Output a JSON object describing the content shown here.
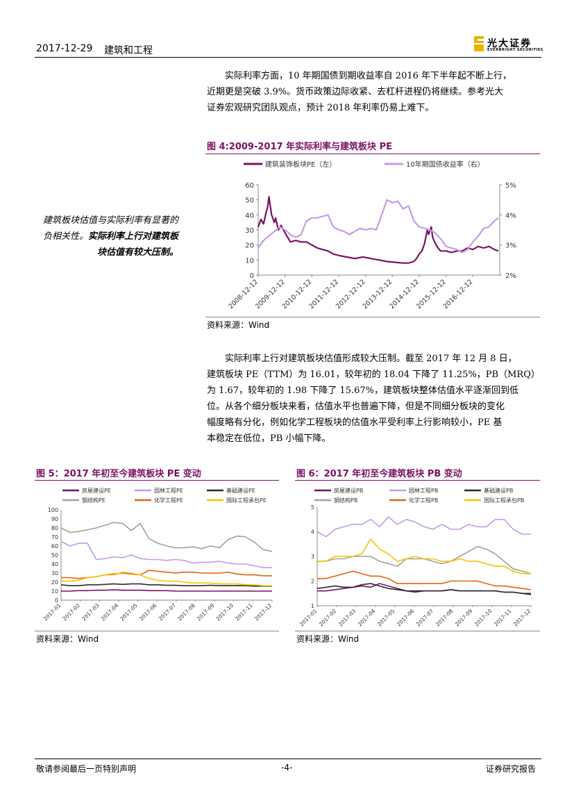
{
  "header": {
    "date": "2017-12-29",
    "sector": "建筑和工程",
    "logo_cn": "光大证券",
    "logo_en": "EVERBRIGHT SECURITIES"
  },
  "paragraph1": [
    "实际利率方面，10 年期国债到期收益率自 2016 年下半年起不断上行，",
    "近期更是突破 3.9%。货币政策边际收紧、去杠杆进程仍将继续。参考光大",
    "证券宏观研究团队观点，预计 2018 年利率仍易上难下。"
  ],
  "sidebar": {
    "text_plain": "建筑板块估值与实际利率有显著的负相关性。",
    "text_bold": "实际利率上行对建筑板块估值有较大压制。"
  },
  "figure4": {
    "title": "图 4:2009-2017 年实际利率与建筑板块 PE",
    "source": "资料来源：Wind"
  },
  "paragraph2": [
    "实际利率上行对建筑板块估值形成较大压制。截至 2017 年 12 月 8 日，",
    "建筑板块 PE（TTM）为 16.01，较年初的 18.04 下降了 11.25%，PB（MRQ）",
    "为 1.67，较年初的 1.98 下降了 15.67%，建筑板块整体估值水平逐渐回到低",
    "位。从各个细分板块来看，估值水平也普遍下降，但是不同细分板块的变化",
    "幅度略有分化，例如化学工程板块的估值水平受利率上行影响较小，PE 基",
    "本稳定在低位，PB 小幅下降。"
  ],
  "figure5": {
    "title": "图 5：2017 年初至今建筑板块 PE 变动",
    "source": "资料来源：Wind"
  },
  "figure6": {
    "title": "图 6：2017 年初至今建筑板块 PB 变动",
    "source": "资料来源：Wind"
  },
  "footer": {
    "left": "敬请参阅最后一页特别声明",
    "page": "-4-",
    "right": "证券研究报告"
  },
  "chart_data": [
    {
      "type": "line",
      "legend": [
        "建筑装饰板块PE（左）",
        "10年期国债收益率（右）"
      ],
      "x_ticks": [
        "2008-12-12",
        "2009-12-12",
        "2010-12-12",
        "2011-12-12",
        "2012-12-12",
        "2013-12-12",
        "2014-12-12",
        "2015-12-12",
        "2016-12-12"
      ],
      "y_left_ticks": [
        "0",
        "10",
        "20",
        "30",
        "40",
        "50",
        "60"
      ],
      "y_right_ticks": [
        "2%",
        "3%",
        "4%",
        "5%"
      ],
      "ylim_left": [
        0,
        60
      ],
      "ylim_right": [
        2,
        5
      ],
      "series": [
        {
          "name": "建筑装饰板块PE（左）",
          "color": "#7b1063",
          "x": [
            2009.0,
            2009.1,
            2009.2,
            2009.3,
            2009.35,
            2009.4,
            2009.5,
            2009.6,
            2009.65,
            2009.75,
            2009.85,
            2010.0,
            2010.2,
            2010.4,
            2010.6,
            2010.8,
            2011.0,
            2011.2,
            2011.4,
            2011.6,
            2011.8,
            2012.0,
            2012.3,
            2012.6,
            2012.9,
            2013.2,
            2013.5,
            2013.8,
            2014.1,
            2014.4,
            2014.6,
            2014.8,
            2014.9,
            2015.0,
            2015.1,
            2015.2,
            2015.3,
            2015.35,
            2015.45,
            2015.5,
            2015.6,
            2015.7,
            2015.8,
            2016.0,
            2016.2,
            2016.4,
            2016.6,
            2016.8,
            2017.0,
            2017.2,
            2017.4,
            2017.6,
            2017.8,
            2017.95
          ],
          "y": [
            32,
            37,
            34,
            42,
            45,
            52,
            40,
            35,
            38,
            30,
            33,
            28,
            22,
            23,
            22,
            22,
            20,
            18,
            17,
            16,
            14,
            13,
            12,
            11,
            12,
            11,
            10,
            9,
            8.5,
            8,
            8,
            9,
            11,
            14,
            16,
            21,
            30,
            27,
            32,
            25,
            21,
            18,
            16,
            16,
            15,
            16,
            16,
            18,
            17,
            19,
            18,
            19,
            17,
            16
          ]
        },
        {
          "name": "10年期国债收益率（右）",
          "color": "#c39be8",
          "x": [
            2009.0,
            2009.2,
            2009.4,
            2009.6,
            2009.8,
            2010.0,
            2010.2,
            2010.4,
            2010.6,
            2010.8,
            2011.0,
            2011.2,
            2011.4,
            2011.6,
            2011.8,
            2012.0,
            2012.2,
            2012.4,
            2012.6,
            2012.8,
            2013.0,
            2013.2,
            2013.4,
            2013.6,
            2013.8,
            2014.0,
            2014.2,
            2014.4,
            2014.6,
            2014.8,
            2015.0,
            2015.2,
            2015.4,
            2015.6,
            2015.8,
            2016.0,
            2016.2,
            2016.4,
            2016.6,
            2016.8,
            2017.0,
            2017.2,
            2017.4,
            2017.6,
            2017.8,
            2017.95
          ],
          "y": [
            2.9,
            3.15,
            3.3,
            3.45,
            3.6,
            3.5,
            3.35,
            3.25,
            3.35,
            3.8,
            3.9,
            3.9,
            3.95,
            4.0,
            3.6,
            3.5,
            3.45,
            3.35,
            3.45,
            3.55,
            3.5,
            3.55,
            3.5,
            4.0,
            4.5,
            4.4,
            4.45,
            4.2,
            4.3,
            3.8,
            3.6,
            3.55,
            3.5,
            3.4,
            3.2,
            2.95,
            2.9,
            2.85,
            2.75,
            2.85,
            3.1,
            3.3,
            3.55,
            3.6,
            3.8,
            3.9
          ]
        }
      ]
    },
    {
      "type": "line",
      "x_ticks": [
        "2017-01",
        "2017-02",
        "2017-03",
        "2017-04",
        "2017-05",
        "2017-06",
        "2017-07",
        "2017-08",
        "2017-09",
        "2017-10",
        "2017-11",
        "2017-12"
      ],
      "y_ticks": [
        "0",
        "10",
        "20",
        "30",
        "40",
        "50",
        "60",
        "70",
        "80",
        "90",
        "100"
      ],
      "ylim": [
        0,
        100
      ],
      "legend": [
        "房屋建设PE",
        "园林工程PE",
        "基础建设PE",
        "钢结构PE",
        "化学工程PE",
        "国际工程承包PE"
      ],
      "series": [
        {
          "name": "房屋建设PE",
          "color": "#7b1063",
          "values": [
            10,
            10,
            10.5,
            10.5,
            11,
            11,
            11.5,
            11,
            11,
            11,
            10.5,
            10.5,
            10.5,
            10,
            10,
            10,
            10,
            10,
            10,
            10,
            10,
            10,
            10,
            10,
            10
          ]
        },
        {
          "name": "园林工程PE",
          "color": "#c39be8",
          "values": [
            65,
            60,
            63,
            63,
            45,
            46,
            48,
            47,
            50,
            46,
            45,
            45,
            44,
            45,
            44,
            41,
            42,
            42,
            43,
            41,
            40,
            40,
            38,
            36,
            36
          ]
        },
        {
          "name": "基础建设PE",
          "color": "#2a2a2a",
          "values": [
            17,
            16,
            16,
            17,
            17,
            17.5,
            18,
            17.5,
            18,
            18,
            17,
            17,
            16.5,
            16.5,
            16,
            16,
            16,
            16.5,
            16,
            16,
            16,
            16,
            15.5,
            15.5,
            15.5
          ]
        },
        {
          "name": "钢结构PE",
          "color": "#a0a0a0",
          "values": [
            80,
            75,
            76,
            78,
            80,
            83,
            86,
            85,
            77,
            85,
            68,
            63,
            60,
            58,
            58,
            59,
            57,
            60,
            58,
            67,
            71,
            70,
            64,
            56,
            54
          ]
        },
        {
          "name": "化学工程PE",
          "color": "#e8600a",
          "values": [
            25,
            25,
            24,
            25,
            26,
            28,
            29,
            30,
            29,
            28,
            33,
            32,
            31,
            30,
            31,
            31,
            30,
            30,
            30,
            31,
            29,
            28,
            28,
            27,
            27
          ]
        },
        {
          "name": "国际工程承包PE",
          "color": "#f5c400",
          "values": [
            21,
            21,
            22,
            25,
            26,
            28,
            28,
            31,
            30,
            28,
            24,
            22,
            21,
            21,
            20,
            19,
            19,
            19,
            18,
            18,
            18,
            17,
            17,
            16,
            16
          ]
        }
      ]
    },
    {
      "type": "line",
      "x_ticks": [
        "2017-01",
        "2017-02",
        "2017-03",
        "2017-04",
        "2017-05",
        "2017-06",
        "2017-07",
        "2017-08",
        "2017-09",
        "2017-10",
        "2017-11",
        "2017-12"
      ],
      "y_ticks": [
        "1",
        "2",
        "3",
        "4",
        "5"
      ],
      "ylim": [
        1,
        5
      ],
      "legend": [
        "房屋建设PB",
        "园林工程PB",
        "基础建设PB",
        "钢结构PB",
        "化学工程PB",
        "国际工程承包PB"
      ],
      "series": [
        {
          "name": "房屋建设PB",
          "color": "#7b1063",
          "values": [
            1.6,
            1.6,
            1.65,
            1.7,
            1.75,
            1.8,
            1.75,
            1.9,
            1.8,
            1.7,
            1.6,
            1.55,
            1.6,
            1.6,
            1.6,
            1.65,
            1.6,
            1.6,
            1.6,
            1.6,
            1.6,
            1.55,
            1.55,
            1.5,
            1.5
          ]
        },
        {
          "name": "园林工程PB",
          "color": "#c39be8",
          "values": [
            4.0,
            3.8,
            4.1,
            4.2,
            4.3,
            4.3,
            4.5,
            4.2,
            4.6,
            4.3,
            4.5,
            4.4,
            4.2,
            4.1,
            4.3,
            4.1,
            4.1,
            4.3,
            4.2,
            4.2,
            4.5,
            4.5,
            4.1,
            3.9,
            3.9
          ]
        },
        {
          "name": "基础建设PB",
          "color": "#2a2a2a",
          "values": [
            1.7,
            1.75,
            1.8,
            1.75,
            1.75,
            1.85,
            1.9,
            1.8,
            1.7,
            1.65,
            1.6,
            1.6,
            1.6,
            1.6,
            1.6,
            1.65,
            1.6,
            1.6,
            1.6,
            1.6,
            1.6,
            1.55,
            1.55,
            1.5,
            1.45
          ]
        },
        {
          "name": "钢结构PB",
          "color": "#a0a0a0",
          "values": [
            2.8,
            2.8,
            2.9,
            2.9,
            3.0,
            3.0,
            3.0,
            2.8,
            2.7,
            2.6,
            2.9,
            2.9,
            2.9,
            2.8,
            2.7,
            2.8,
            3.0,
            3.2,
            3.4,
            3.3,
            3.1,
            2.8,
            2.5,
            2.4,
            2.3
          ]
        },
        {
          "name": "化学工程PB",
          "color": "#e8600a",
          "values": [
            2.1,
            2.1,
            2.2,
            2.3,
            2.4,
            2.3,
            2.2,
            2.2,
            2.1,
            1.9,
            1.9,
            1.9,
            1.9,
            1.9,
            1.9,
            2.0,
            2.0,
            2.0,
            2.0,
            1.9,
            1.8,
            1.8,
            1.75,
            1.7,
            1.65
          ]
        },
        {
          "name": "国际工程承包PB",
          "color": "#f5c400",
          "values": [
            2.8,
            2.8,
            3.0,
            3.0,
            3.0,
            3.1,
            3.7,
            3.3,
            3.1,
            2.8,
            2.9,
            3.0,
            2.9,
            2.9,
            2.8,
            2.8,
            2.9,
            2.8,
            2.8,
            2.7,
            2.6,
            2.6,
            2.4,
            2.3,
            2.3
          ]
        }
      ]
    }
  ]
}
